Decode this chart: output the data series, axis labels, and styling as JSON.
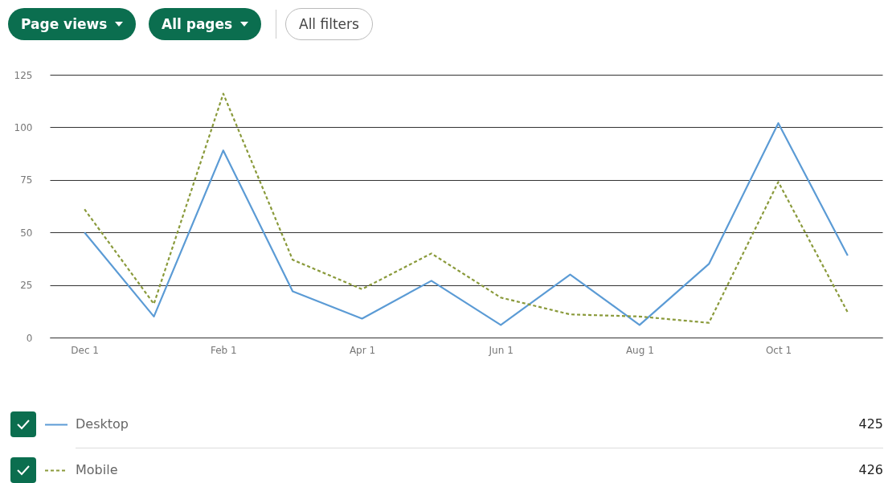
{
  "chart_data": {
    "type": "line",
    "categories": [
      "Dec 1",
      null,
      "Feb 1",
      null,
      "Apr 1",
      null,
      "Jun 1",
      null,
      "Aug 1",
      null,
      "Oct 1",
      null
    ],
    "series": [
      {
        "name": "Desktop",
        "color": "#5b9bd5",
        "line_style": "solid",
        "values": [
          50,
          10,
          89,
          22,
          9,
          27,
          6,
          30,
          6,
          35,
          102,
          39
        ]
      },
      {
        "name": "Mobile",
        "color": "#8a9a3b",
        "line_style": "dashed",
        "values": [
          61,
          16,
          116,
          37,
          23,
          40,
          19,
          11,
          10,
          7,
          74,
          12
        ]
      }
    ],
    "ylim": [
      0,
      125
    ],
    "yticks": [
      0,
      25,
      50,
      75,
      100,
      125
    ],
    "grid": "y",
    "legend": "bottom",
    "marker": "none",
    "annotations": [
      "Page views",
      "All pages",
      "All filters",
      "425",
      "426"
    ]
  }
}
